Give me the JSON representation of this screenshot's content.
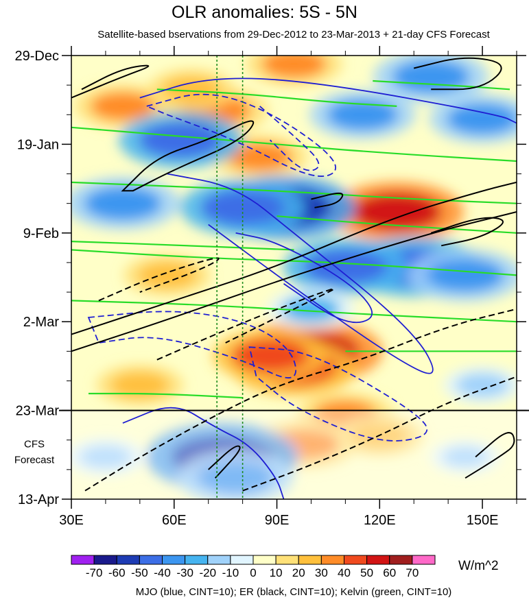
{
  "chart_data": {
    "type": "heatmap",
    "title": "OLR anomalies: 5S - 5N",
    "subtitle": "Satellite-based bservations from 29-Dec-2012 to 23-Mar-2013 + 21-day CFS Forecast",
    "xlabel": "",
    "ylabel": "",
    "x_ticks": [
      "30E",
      "60E",
      "90E",
      "120E",
      "150E"
    ],
    "x_tick_values": [
      30,
      60,
      90,
      120,
      150
    ],
    "xlim": [
      30,
      160
    ],
    "y_ticks": [
      "29-Dec",
      "19-Jan",
      "9-Feb",
      "2-Mar",
      "23-Mar",
      "13-Apr"
    ],
    "y_tick_values": [
      0,
      21,
      42,
      63,
      84,
      105
    ],
    "ylim": [
      0,
      105
    ],
    "y_direction": "time increases downward",
    "observation_end_day": 84,
    "forecast_label": [
      "CFS",
      "Forecast"
    ],
    "reference_lines_lon": [
      72.5,
      80
    ],
    "colorbar": {
      "units": "W/m^2",
      "labels": [
        "-70",
        "-60",
        "-50",
        "-40",
        "-30",
        "-20",
        "-10",
        "0",
        "10",
        "20",
        "30",
        "40",
        "50",
        "60",
        "70"
      ],
      "levels": [
        -70,
        -60,
        -50,
        -40,
        -30,
        -20,
        -10,
        0,
        10,
        20,
        30,
        40,
        50,
        60,
        70
      ],
      "colors": [
        "#a020f0",
        "#1a1a8c",
        "#1e3cb4",
        "#3c6ee6",
        "#3c96f0",
        "#46b4f0",
        "#a0d2fa",
        "#e1f5ff",
        "#ffffc8",
        "#ffe178",
        "#ffc03c",
        "#ff8c28",
        "#f04a1e",
        "#d21414",
        "#a01e1e",
        "#ff69c8"
      ]
    },
    "contour_legend": "MJO (blue, CINT=10); ER (black, CINT=10); Kelvin (green, CINT=10)",
    "series": [
      {
        "name": "MJO",
        "color": "#1e1ed2",
        "cint": 10
      },
      {
        "name": "ER",
        "color": "#000000",
        "cint": 10
      },
      {
        "name": "Kelvin",
        "color": "#28dc28",
        "cint": 10
      }
    ],
    "anomaly_blobs": [
      {
        "lon": 100,
        "day": 70,
        "value": 55
      },
      {
        "lon": 95,
        "day": 74,
        "value": 45
      },
      {
        "lon": 88,
        "day": 71,
        "value": 40
      },
      {
        "lon": 125,
        "day": 37,
        "value": 50
      },
      {
        "lon": 72,
        "day": 13,
        "value": 35
      },
      {
        "lon": 45,
        "day": 12,
        "value": 30
      },
      {
        "lon": 95,
        "day": 2,
        "value": 30
      },
      {
        "lon": 65,
        "day": 8,
        "value": 25
      },
      {
        "lon": 110,
        "day": 85,
        "value": 30
      },
      {
        "lon": 98,
        "day": 92,
        "value": 35
      },
      {
        "lon": 120,
        "day": 90,
        "value": 25
      },
      {
        "lon": 50,
        "day": 78,
        "value": 25
      },
      {
        "lon": 140,
        "day": 50,
        "value": 25
      },
      {
        "lon": 85,
        "day": 24,
        "value": 30
      },
      {
        "lon": 58,
        "day": 52,
        "value": 25
      },
      {
        "lon": 74,
        "day": 95,
        "value": -60
      },
      {
        "lon": 78,
        "day": 100,
        "value": -40
      },
      {
        "lon": 92,
        "day": 36,
        "value": -55
      },
      {
        "lon": 80,
        "day": 36,
        "value": -45
      },
      {
        "lon": 62,
        "day": 20,
        "value": -45
      },
      {
        "lon": 45,
        "day": 35,
        "value": -40
      },
      {
        "lon": 130,
        "day": 50,
        "value": -50
      },
      {
        "lon": 145,
        "day": 52,
        "value": -40
      },
      {
        "lon": 110,
        "day": 50,
        "value": -45
      },
      {
        "lon": 135,
        "day": 5,
        "value": -40
      },
      {
        "lon": 150,
        "day": 15,
        "value": -35
      },
      {
        "lon": 115,
        "day": 14,
        "value": -35
      },
      {
        "lon": 40,
        "day": 95,
        "value": -20
      },
      {
        "lon": 145,
        "day": 95,
        "value": -15
      },
      {
        "lon": 100,
        "day": 60,
        "value": -25
      },
      {
        "lon": 150,
        "day": 78,
        "value": -20
      }
    ],
    "mjo_contours": [
      {
        "points": [
          [
            50,
            10
          ],
          [
            70,
            5
          ],
          [
            100,
            6
          ],
          [
            155,
            14
          ],
          [
            160,
            16
          ]
        ],
        "dash": false
      },
      {
        "points": [
          [
            52,
            12
          ],
          [
            70,
            8
          ],
          [
            90,
            14
          ],
          [
            110,
            26
          ],
          [
            102,
            30
          ],
          [
            78,
            20
          ],
          [
            58,
            14
          ]
        ],
        "dash": true
      },
      {
        "points": [
          [
            58,
            28
          ],
          [
            78,
            31
          ],
          [
            95,
            42
          ],
          [
            130,
            65
          ],
          [
            138,
            77
          ],
          [
            125,
            72
          ],
          [
            95,
            55
          ],
          [
            70,
            40
          ]
        ],
        "dash": false
      },
      {
        "points": [
          [
            78,
            42
          ],
          [
            90,
            44
          ],
          [
            112,
            54
          ],
          [
            120,
            62
          ],
          [
            110,
            64
          ],
          [
            92,
            54
          ]
        ],
        "dash": false
      },
      {
        "points": [
          [
            35,
            62
          ],
          [
            60,
            60
          ],
          [
            82,
            63
          ],
          [
            95,
            70
          ],
          [
            96,
            78
          ],
          [
            80,
            72
          ],
          [
            55,
            66
          ],
          [
            38,
            68
          ]
        ],
        "dash": true
      },
      {
        "points": [
          [
            82,
            69
          ],
          [
            100,
            70
          ],
          [
            130,
            84
          ],
          [
            136,
            90
          ],
          [
            120,
            92
          ],
          [
            96,
            84
          ],
          [
            84,
            76
          ]
        ],
        "dash": true
      },
      {
        "points": [
          [
            45,
            87
          ],
          [
            60,
            82
          ],
          [
            72,
            88
          ],
          [
            82,
            92
          ],
          [
            90,
            100
          ],
          [
            92,
            105
          ]
        ],
        "dash": false
      },
      {
        "points": [
          [
            85,
            12
          ],
          [
            95,
            19
          ],
          [
            104,
            26
          ],
          [
            98,
            28
          ],
          [
            88,
            20
          ]
        ],
        "dash": true
      }
    ],
    "er_contours": [
      {
        "points": [
          [
            30,
            10
          ],
          [
            45,
            5
          ],
          [
            55,
            2
          ],
          [
            45,
            3
          ],
          [
            33,
            8
          ]
        ],
        "dash": false
      },
      {
        "points": [
          [
            45,
            32
          ],
          [
            55,
            24
          ],
          [
            70,
            20
          ],
          [
            85,
            14
          ],
          [
            80,
            20
          ],
          [
            60,
            27
          ],
          [
            48,
            32
          ]
        ],
        "dash": false
      },
      {
        "points": [
          [
            38,
            58
          ],
          [
            55,
            52
          ],
          [
            75,
            47
          ],
          [
            70,
            50
          ],
          [
            50,
            56
          ]
        ],
        "dash": true
      },
      {
        "points": [
          [
            30,
            70
          ],
          [
            60,
            62
          ],
          [
            95,
            52
          ],
          [
            135,
            42
          ],
          [
            155,
            38
          ],
          [
            160,
            37
          ]
        ],
        "dash": false
      },
      {
        "points": [
          [
            30,
            66
          ],
          [
            60,
            58
          ],
          [
            90,
            50
          ],
          [
            125,
            38
          ],
          [
            150,
            32
          ],
          [
            160,
            30
          ]
        ],
        "dash": false
      },
      {
        "points": [
          [
            55,
            72
          ],
          [
            72,
            66
          ],
          [
            90,
            60
          ],
          [
            110,
            54
          ],
          [
            100,
            58
          ],
          [
            75,
            68
          ]
        ],
        "dash": true
      },
      {
        "points": [
          [
            34,
            103
          ],
          [
            50,
            95
          ],
          [
            70,
            86
          ],
          [
            90,
            78
          ],
          [
            115,
            72
          ],
          [
            140,
            64
          ],
          [
            160,
            60
          ]
        ],
        "dash": true
      },
      {
        "points": [
          [
            80,
            103
          ],
          [
            100,
            97
          ],
          [
            120,
            90
          ],
          [
            140,
            82
          ],
          [
            160,
            76
          ]
        ],
        "dash": true
      },
      {
        "points": [
          [
            145,
            100
          ],
          [
            155,
            95
          ],
          [
            160,
            92
          ],
          [
            158,
            88
          ],
          [
            148,
            95
          ]
        ],
        "dash": false
      },
      {
        "points": [
          [
            130,
            3
          ],
          [
            145,
            0
          ],
          [
            158,
            2
          ],
          [
            150,
            8
          ],
          [
            135,
            8
          ]
        ],
        "dash": false
      },
      {
        "points": [
          [
            70,
            98
          ],
          [
            78,
            92
          ],
          [
            80,
            93
          ],
          [
            72,
            100
          ]
        ],
        "dash": false
      },
      {
        "points": [
          [
            100,
            34
          ],
          [
            110,
            32
          ],
          [
            108,
            35
          ],
          [
            101,
            36
          ]
        ],
        "dash": false
      },
      {
        "points": [
          [
            135,
            42
          ],
          [
            150,
            38
          ],
          [
            158,
            39
          ],
          [
            150,
            43
          ],
          [
            138,
            45
          ]
        ],
        "dash": false
      }
    ],
    "kelvin_contours": [
      {
        "points": [
          [
            30,
            17
          ],
          [
            60,
            19
          ],
          [
            90,
            21
          ],
          [
            120,
            23
          ],
          [
            160,
            25
          ]
        ]
      },
      {
        "points": [
          [
            30,
            30
          ],
          [
            60,
            31
          ],
          [
            90,
            32
          ],
          [
            130,
            34
          ],
          [
            160,
            35
          ]
        ]
      },
      {
        "points": [
          [
            30,
            46
          ],
          [
            70,
            48
          ],
          [
            110,
            49
          ],
          [
            160,
            52
          ]
        ]
      },
      {
        "points": [
          [
            30,
            58
          ],
          [
            70,
            59
          ],
          [
            110,
            61
          ],
          [
            160,
            63
          ]
        ]
      },
      {
        "points": [
          [
            55,
            8
          ],
          [
            80,
            9
          ],
          [
            105,
            11
          ],
          [
            125,
            12
          ]
        ]
      },
      {
        "points": [
          [
            30,
            44
          ],
          [
            65,
            45
          ],
          [
            95,
            46
          ]
        ]
      },
      {
        "points": [
          [
            110,
            70
          ],
          [
            135,
            70
          ],
          [
            160,
            70
          ]
        ]
      },
      {
        "points": [
          [
            35,
            80
          ],
          [
            55,
            80
          ],
          [
            80,
            81
          ]
        ]
      },
      {
        "points": [
          [
            118,
            6
          ],
          [
            140,
            7
          ],
          [
            158,
            8
          ]
        ]
      },
      {
        "points": [
          [
            90,
            38
          ],
          [
            120,
            40
          ],
          [
            160,
            42
          ]
        ]
      }
    ]
  }
}
